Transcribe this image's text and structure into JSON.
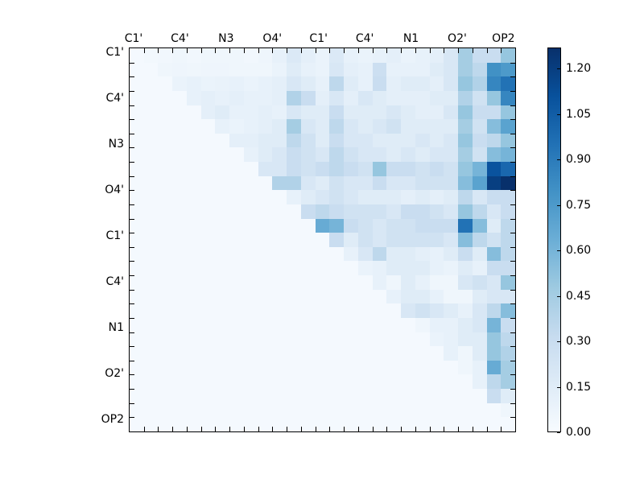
{
  "chart_data": {
    "type": "heatmap",
    "title": "",
    "xlabel": "",
    "ylabel": "",
    "n": 27,
    "axis_tick_labels": [
      "C1'",
      "C4'",
      "N3",
      "O4'",
      "C1'",
      "C4'",
      "N1",
      "O2'",
      "OP2"
    ],
    "legend_position": "right-colorbar",
    "grid": false,
    "vmin": 0.0,
    "vmax": 1.27,
    "colorbar_tick_labels": [
      "0.00",
      "0.15",
      "0.30",
      "0.45",
      "0.60",
      "0.75",
      "0.90",
      "1.05",
      "1.20"
    ],
    "colorbar_tick_values": [
      0.0,
      0.15,
      0.3,
      0.45,
      0.6,
      0.75,
      0.9,
      1.05,
      1.2
    ],
    "colormap": {
      "name": "Blues",
      "anchors": [
        "#f7fbff",
        "#deebf7",
        "#c6dbef",
        "#9ecae1",
        "#6baed6",
        "#4292c6",
        "#2171b5",
        "#08519c",
        "#08306b"
      ]
    },
    "background_color": "#ffffff",
    "axis_color": "#000000",
    "matrix_note": "upper-triangular fluctuation matrix; lower triangle is empty baseline 0.02",
    "matrix": [
      [
        0.02,
        0.03,
        0.04,
        0.05,
        0.04,
        0.05,
        0.05,
        0.05,
        0.04,
        0.06,
        0.1,
        0.18,
        0.12,
        0.08,
        0.18,
        0.1,
        0.08,
        0.1,
        0.12,
        0.08,
        0.1,
        0.12,
        0.2,
        0.45,
        0.3,
        0.3,
        0.5
      ],
      [
        0.02,
        0.02,
        0.05,
        0.06,
        0.05,
        0.06,
        0.06,
        0.05,
        0.05,
        0.05,
        0.08,
        0.15,
        0.1,
        0.08,
        0.2,
        0.12,
        0.1,
        0.28,
        0.1,
        0.1,
        0.1,
        0.15,
        0.2,
        0.45,
        0.35,
        0.8,
        0.75
      ],
      [
        0.02,
        0.02,
        0.02,
        0.08,
        0.1,
        0.08,
        0.09,
        0.1,
        0.08,
        0.1,
        0.12,
        0.2,
        0.15,
        0.1,
        0.35,
        0.15,
        0.1,
        0.3,
        0.12,
        0.15,
        0.15,
        0.12,
        0.2,
        0.5,
        0.4,
        0.85,
        0.95
      ],
      [
        0.02,
        0.02,
        0.02,
        0.02,
        0.1,
        0.12,
        0.1,
        0.12,
        0.1,
        0.1,
        0.12,
        0.4,
        0.3,
        0.12,
        0.2,
        0.12,
        0.2,
        0.15,
        0.12,
        0.12,
        0.12,
        0.15,
        0.15,
        0.4,
        0.25,
        0.5,
        0.85
      ],
      [
        0.02,
        0.02,
        0.02,
        0.02,
        0.02,
        0.12,
        0.15,
        0.1,
        0.1,
        0.12,
        0.1,
        0.2,
        0.15,
        0.15,
        0.3,
        0.15,
        0.15,
        0.15,
        0.2,
        0.15,
        0.12,
        0.12,
        0.2,
        0.5,
        0.3,
        0.3,
        0.5
      ],
      [
        0.02,
        0.02,
        0.02,
        0.02,
        0.02,
        0.02,
        0.1,
        0.08,
        0.1,
        0.12,
        0.15,
        0.45,
        0.2,
        0.15,
        0.35,
        0.2,
        0.15,
        0.2,
        0.25,
        0.15,
        0.15,
        0.15,
        0.15,
        0.45,
        0.25,
        0.55,
        0.7
      ],
      [
        0.02,
        0.02,
        0.02,
        0.02,
        0.02,
        0.02,
        0.02,
        0.12,
        0.12,
        0.15,
        0.15,
        0.35,
        0.25,
        0.15,
        0.3,
        0.2,
        0.2,
        0.15,
        0.15,
        0.15,
        0.2,
        0.15,
        0.2,
        0.5,
        0.3,
        0.35,
        0.5
      ],
      [
        0.02,
        0.02,
        0.02,
        0.02,
        0.02,
        0.02,
        0.02,
        0.02,
        0.1,
        0.15,
        0.2,
        0.3,
        0.25,
        0.2,
        0.35,
        0.25,
        0.2,
        0.2,
        0.15,
        0.2,
        0.15,
        0.2,
        0.2,
        0.45,
        0.25,
        0.55,
        0.6
      ],
      [
        0.02,
        0.02,
        0.02,
        0.02,
        0.02,
        0.02,
        0.02,
        0.02,
        0.02,
        0.2,
        0.2,
        0.3,
        0.25,
        0.3,
        0.35,
        0.3,
        0.25,
        0.5,
        0.3,
        0.3,
        0.25,
        0.3,
        0.25,
        0.5,
        0.6,
        1.1,
        1.0
      ],
      [
        0.02,
        0.02,
        0.02,
        0.02,
        0.02,
        0.02,
        0.02,
        0.02,
        0.02,
        0.02,
        0.4,
        0.4,
        0.2,
        0.15,
        0.25,
        0.2,
        0.2,
        0.3,
        0.2,
        0.2,
        0.25,
        0.25,
        0.25,
        0.55,
        0.7,
        1.2,
        1.27
      ],
      [
        0.02,
        0.02,
        0.02,
        0.02,
        0.02,
        0.02,
        0.02,
        0.02,
        0.02,
        0.02,
        0.02,
        0.1,
        0.15,
        0.2,
        0.25,
        0.2,
        0.15,
        0.15,
        0.15,
        0.12,
        0.15,
        0.12,
        0.15,
        0.35,
        0.2,
        0.3,
        0.3
      ],
      [
        0.02,
        0.02,
        0.02,
        0.02,
        0.02,
        0.02,
        0.02,
        0.02,
        0.02,
        0.02,
        0.02,
        0.02,
        0.3,
        0.35,
        0.3,
        0.25,
        0.25,
        0.25,
        0.2,
        0.3,
        0.3,
        0.25,
        0.2,
        0.5,
        0.35,
        0.2,
        0.3
      ],
      [
        0.02,
        0.02,
        0.02,
        0.02,
        0.02,
        0.02,
        0.02,
        0.02,
        0.02,
        0.02,
        0.02,
        0.02,
        0.02,
        0.65,
        0.6,
        0.3,
        0.25,
        0.2,
        0.25,
        0.25,
        0.3,
        0.3,
        0.3,
        0.95,
        0.55,
        0.15,
        0.35
      ],
      [
        0.02,
        0.02,
        0.02,
        0.02,
        0.02,
        0.02,
        0.02,
        0.02,
        0.02,
        0.02,
        0.02,
        0.02,
        0.02,
        0.02,
        0.3,
        0.15,
        0.25,
        0.2,
        0.25,
        0.25,
        0.25,
        0.25,
        0.2,
        0.55,
        0.35,
        0.25,
        0.35
      ],
      [
        0.02,
        0.02,
        0.02,
        0.02,
        0.02,
        0.02,
        0.02,
        0.02,
        0.02,
        0.02,
        0.02,
        0.02,
        0.02,
        0.02,
        0.02,
        0.1,
        0.2,
        0.35,
        0.15,
        0.15,
        0.12,
        0.1,
        0.15,
        0.3,
        0.15,
        0.55,
        0.35
      ],
      [
        0.02,
        0.02,
        0.02,
        0.02,
        0.02,
        0.02,
        0.02,
        0.02,
        0.02,
        0.02,
        0.02,
        0.02,
        0.02,
        0.02,
        0.02,
        0.02,
        0.08,
        0.1,
        0.15,
        0.15,
        0.15,
        0.1,
        0.08,
        0.15,
        0.1,
        0.3,
        0.3
      ],
      [
        0.02,
        0.02,
        0.02,
        0.02,
        0.02,
        0.02,
        0.02,
        0.02,
        0.02,
        0.02,
        0.02,
        0.02,
        0.02,
        0.02,
        0.02,
        0.02,
        0.02,
        0.1,
        0.05,
        0.15,
        0.1,
        0.05,
        0.05,
        0.2,
        0.25,
        0.2,
        0.5
      ],
      [
        0.02,
        0.02,
        0.02,
        0.02,
        0.02,
        0.02,
        0.02,
        0.02,
        0.02,
        0.02,
        0.02,
        0.02,
        0.02,
        0.02,
        0.02,
        0.02,
        0.02,
        0.02,
        0.1,
        0.15,
        0.15,
        0.1,
        0.05,
        0.05,
        0.15,
        0.2,
        0.2
      ],
      [
        0.02,
        0.02,
        0.02,
        0.02,
        0.02,
        0.02,
        0.02,
        0.02,
        0.02,
        0.02,
        0.02,
        0.02,
        0.02,
        0.02,
        0.02,
        0.02,
        0.02,
        0.02,
        0.02,
        0.2,
        0.25,
        0.2,
        0.15,
        0.1,
        0.2,
        0.35,
        0.55
      ],
      [
        0.02,
        0.02,
        0.02,
        0.02,
        0.02,
        0.02,
        0.02,
        0.02,
        0.02,
        0.02,
        0.02,
        0.02,
        0.02,
        0.02,
        0.02,
        0.02,
        0.02,
        0.02,
        0.02,
        0.02,
        0.05,
        0.1,
        0.1,
        0.15,
        0.2,
        0.6,
        0.3
      ],
      [
        0.02,
        0.02,
        0.02,
        0.02,
        0.02,
        0.02,
        0.02,
        0.02,
        0.02,
        0.02,
        0.02,
        0.02,
        0.02,
        0.02,
        0.02,
        0.02,
        0.02,
        0.02,
        0.02,
        0.02,
        0.02,
        0.08,
        0.1,
        0.15,
        0.15,
        0.5,
        0.35
      ],
      [
        0.02,
        0.02,
        0.02,
        0.02,
        0.02,
        0.02,
        0.02,
        0.02,
        0.02,
        0.02,
        0.02,
        0.02,
        0.02,
        0.02,
        0.02,
        0.02,
        0.02,
        0.02,
        0.02,
        0.02,
        0.02,
        0.02,
        0.1,
        0.05,
        0.15,
        0.5,
        0.4
      ],
      [
        0.02,
        0.02,
        0.02,
        0.02,
        0.02,
        0.02,
        0.02,
        0.02,
        0.02,
        0.02,
        0.02,
        0.02,
        0.02,
        0.02,
        0.02,
        0.02,
        0.02,
        0.02,
        0.02,
        0.02,
        0.02,
        0.02,
        0.02,
        0.05,
        0.1,
        0.65,
        0.45
      ],
      [
        0.02,
        0.02,
        0.02,
        0.02,
        0.02,
        0.02,
        0.02,
        0.02,
        0.02,
        0.02,
        0.02,
        0.02,
        0.02,
        0.02,
        0.02,
        0.02,
        0.02,
        0.02,
        0.02,
        0.02,
        0.02,
        0.02,
        0.02,
        0.02,
        0.1,
        0.35,
        0.45
      ],
      [
        0.02,
        0.02,
        0.02,
        0.02,
        0.02,
        0.02,
        0.02,
        0.02,
        0.02,
        0.02,
        0.02,
        0.02,
        0.02,
        0.02,
        0.02,
        0.02,
        0.02,
        0.02,
        0.02,
        0.02,
        0.02,
        0.02,
        0.02,
        0.02,
        0.02,
        0.3,
        0.15
      ],
      [
        0.02,
        0.02,
        0.02,
        0.02,
        0.02,
        0.02,
        0.02,
        0.02,
        0.02,
        0.02,
        0.02,
        0.02,
        0.02,
        0.02,
        0.02,
        0.02,
        0.02,
        0.02,
        0.02,
        0.02,
        0.02,
        0.02,
        0.02,
        0.02,
        0.02,
        0.02,
        0.05
      ],
      [
        0.02,
        0.02,
        0.02,
        0.02,
        0.02,
        0.02,
        0.02,
        0.02,
        0.02,
        0.02,
        0.02,
        0.02,
        0.02,
        0.02,
        0.02,
        0.02,
        0.02,
        0.02,
        0.02,
        0.02,
        0.02,
        0.02,
        0.02,
        0.02,
        0.02,
        0.02,
        0.02
      ]
    ]
  }
}
